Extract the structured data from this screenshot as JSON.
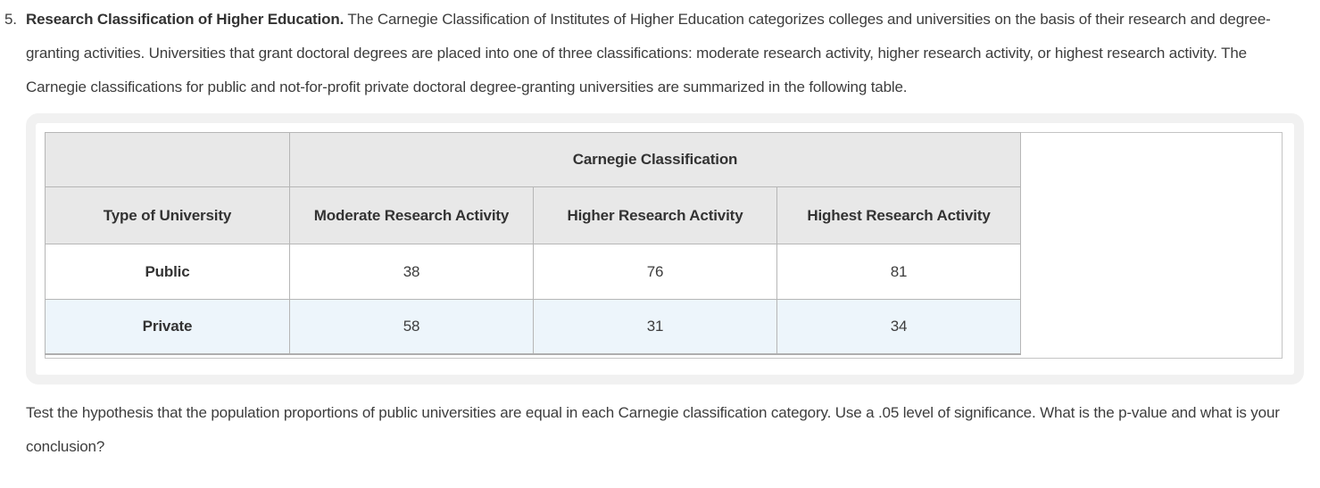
{
  "problem": {
    "number": "5.",
    "bold_lead": "Research Classification of Higher Education.",
    "intro_rest": " The Carnegie Classification of Institutes of Higher Education categorizes colleges and universities on the basis of their research and degree-granting activities. Universities that grant doctoral degrees are placed into one of three classifications: moderate research activity, higher research activity, or highest research activity. The Carnegie classifications for public and not-for-profit private doctoral degree-granting universities are summarized in the following table.",
    "question": "Test the hypothesis that the population proportions of public universities are equal in each Carnegie classification category. Use a .05 level of significance. What is the p-value and what is your conclusion?"
  },
  "table": {
    "group_header": "Carnegie Classification",
    "row_header_label": "Type of University",
    "columns": [
      "Moderate Research Activity",
      "Higher Research Activity",
      "Highest Research Activity"
    ],
    "rows": [
      {
        "label": "Public",
        "values": [
          "38",
          "76",
          "81"
        ]
      },
      {
        "label": "Private",
        "values": [
          "58",
          "31",
          "34"
        ]
      }
    ]
  },
  "colors": {
    "header_bg": "#e8e8e8",
    "stripe_bg": "#edf5fb",
    "border": "#b6b6b6",
    "wrapper_border": "#c4c4c4",
    "card_ring": "#f1f1f1",
    "text": "#3d3d3d",
    "heading_text": "#333333"
  }
}
